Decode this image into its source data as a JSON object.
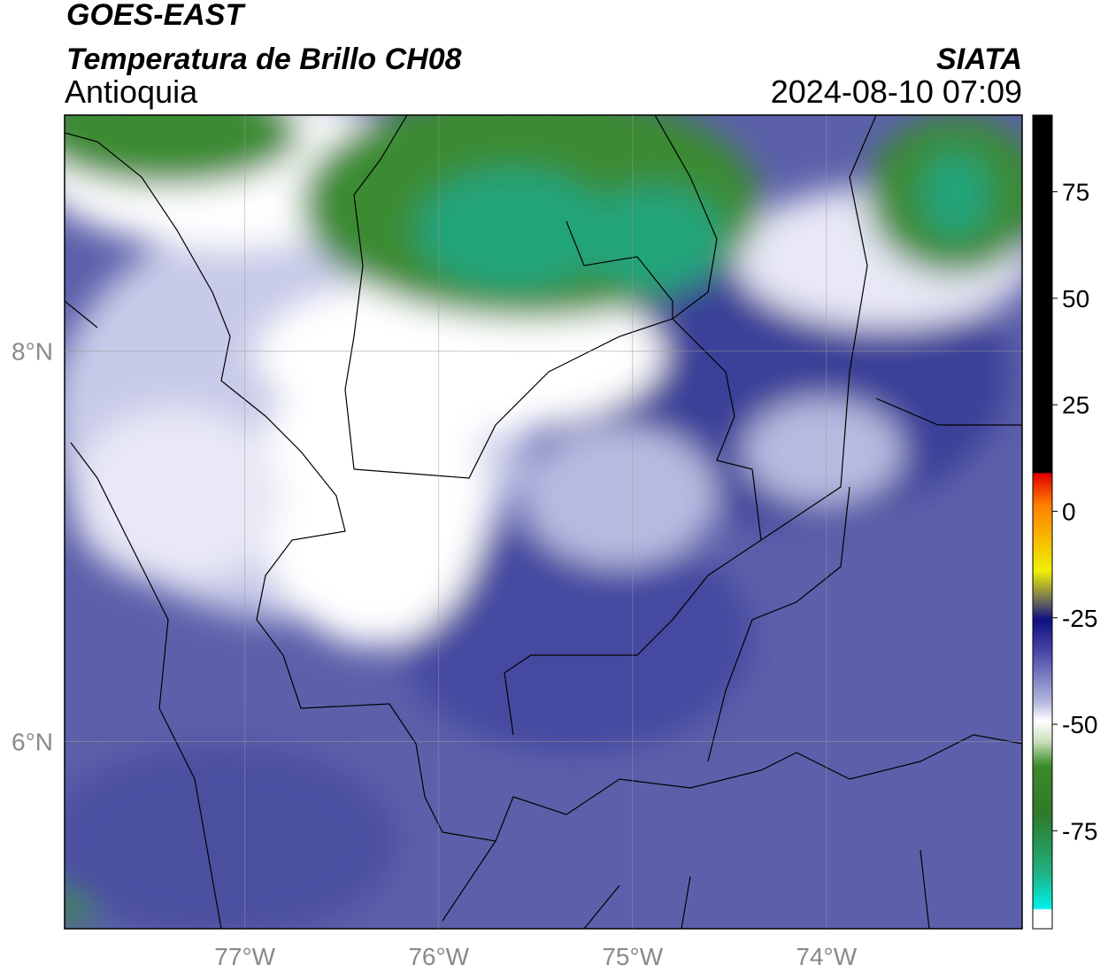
{
  "header": {
    "title": "GOES-EAST",
    "subtitle": "Temperatura de Brillo CH08",
    "region": "Antioquia",
    "source": "SIATA",
    "datetime": "2024-08-10 07:09"
  },
  "map": {
    "xlim": [
      -77.93,
      -72.99
    ],
    "ylim": [
      5.04,
      9.21
    ],
    "xticks": [
      {
        "value": -77,
        "label": "77°W"
      },
      {
        "value": -76,
        "label": "76°W"
      },
      {
        "value": -75,
        "label": "75°W"
      },
      {
        "value": -74,
        "label": "74°W"
      }
    ],
    "yticks": [
      {
        "value": 6,
        "label": "6°N"
      },
      {
        "value": 8,
        "label": "8°N"
      }
    ],
    "grid": true
  },
  "colorbar": {
    "ylim": [
      -98,
      93
    ],
    "yticks": [
      -75,
      -50,
      -25,
      0,
      25,
      50,
      75
    ]
  }
}
